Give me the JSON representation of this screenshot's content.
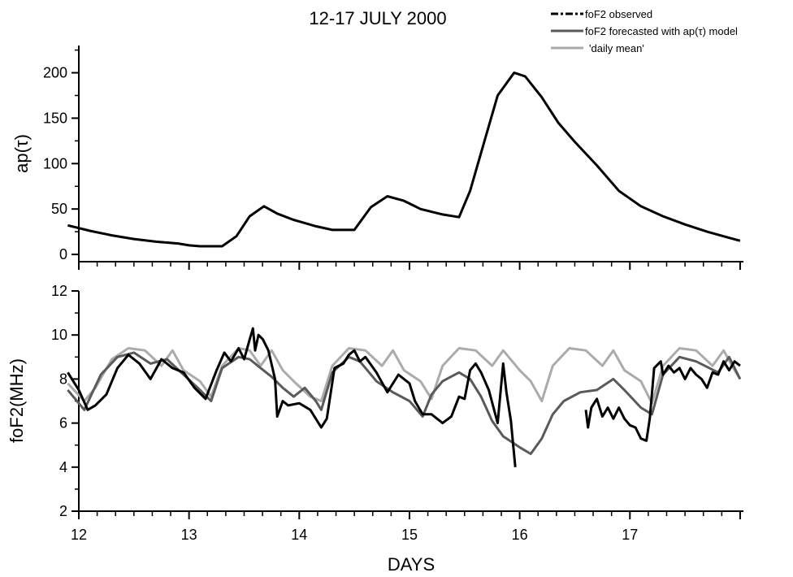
{
  "chart_data": {
    "title": "12-17 JULY 2000",
    "xlabel": "DAYS",
    "x_ticks": [
      "12",
      "13",
      "14",
      "15",
      "16",
      "17"
    ],
    "xlim": [
      12,
      18.03
    ],
    "legend": {
      "placement": "top-right",
      "entries": [
        "foF2 observed",
        "foF2 forecasted with ap(τ) model",
        "'daily mean'"
      ]
    },
    "panels": [
      {
        "type": "line",
        "ylabel": "ap(τ)",
        "ylim": [
          -8,
          230
        ],
        "y_ticks": [
          "0",
          "50",
          "100",
          "150",
          "200"
        ],
        "series": [
          {
            "color": "#000000",
            "x": [
              11.9,
              12.1,
              12.3,
              12.5,
              12.7,
              12.9,
              13.0,
              13.1,
              13.3,
              13.43,
              13.55,
              13.68,
              13.8,
              13.95,
              14.15,
              14.3,
              14.5,
              14.65,
              14.8,
              14.95,
              15.1,
              15.3,
              15.45,
              15.55,
              15.7,
              15.8,
              15.95,
              16.05,
              16.2,
              16.35,
              16.5,
              16.7,
              16.9,
              17.1,
              17.3,
              17.5,
              17.7,
              18.0
            ],
            "y": [
              32,
              26,
              21,
              17,
              14,
              12,
              10,
              9,
              9,
              20,
              42,
              53,
              45,
              38,
              31,
              27,
              27,
              52,
              64,
              59,
              50,
              44,
              41,
              70,
              133,
              175,
              200,
              196,
              173,
              145,
              124,
              98,
              70,
              53,
              42,
              33,
              25,
              15
            ]
          }
        ]
      },
      {
        "type": "line",
        "ylabel": "foF2(MHz)",
        "ylim": [
          2,
          12
        ],
        "y_ticks": [
          "2",
          "4",
          "6",
          "8",
          "10",
          "12"
        ],
        "series": [
          {
            "name": "foF2 observed",
            "color": "#000000",
            "segments": [
              {
                "x": [
                  11.9,
                  12.0,
                  12.08,
                  12.15,
                  12.25,
                  12.35,
                  12.45,
                  12.55,
                  12.65,
                  12.75,
                  12.85,
                  12.95,
                  13.05,
                  13.15,
                  13.25,
                  13.32,
                  13.38,
                  13.45,
                  13.5,
                  13.55,
                  13.58,
                  13.6,
                  13.63,
                  13.67,
                  13.72,
                  13.78,
                  13.8,
                  13.85,
                  13.9,
                  14.0,
                  14.1,
                  14.2,
                  14.25,
                  14.32,
                  14.4,
                  14.45,
                  14.5,
                  14.55,
                  14.6,
                  14.7,
                  14.8,
                  14.9,
                  15.0,
                  15.05,
                  15.12,
                  15.2,
                  15.3,
                  15.38,
                  15.45,
                  15.5,
                  15.55,
                  15.6,
                  15.65,
                  15.72,
                  15.8,
                  15.85,
                  15.88,
                  15.92,
                  15.96
                ],
                "y": [
                  8.3,
                  7.5,
                  6.6,
                  6.8,
                  7.3,
                  8.5,
                  9.1,
                  8.7,
                  8.0,
                  8.9,
                  8.5,
                  8.3,
                  7.6,
                  7.1,
                  8.4,
                  9.2,
                  8.8,
                  9.4,
                  8.9,
                  9.8,
                  10.3,
                  9.3,
                  10.0,
                  9.8,
                  9.3,
                  8.0,
                  6.3,
                  7.0,
                  6.8,
                  6.9,
                  6.6,
                  5.8,
                  6.2,
                  8.5,
                  8.7,
                  9.1,
                  9.3,
                  8.8,
                  9.0,
                  8.3,
                  7.4,
                  8.2,
                  7.8,
                  7.0,
                  6.4,
                  6.4,
                  6.0,
                  6.3,
                  7.2,
                  7.1,
                  8.4,
                  8.7,
                  8.3,
                  7.5,
                  6.0,
                  8.7,
                  7.4,
                  6.1,
                  4.0
                ]
              },
              {
                "x": [
                  16.6,
                  16.62,
                  16.65,
                  16.7,
                  16.75,
                  16.8,
                  16.85,
                  16.9,
                  16.95,
                  17.0,
                  17.05,
                  17.1,
                  17.15,
                  17.18,
                  17.22,
                  17.28,
                  17.3,
                  17.35,
                  17.4,
                  17.45,
                  17.5,
                  17.55,
                  17.6,
                  17.65,
                  17.7,
                  17.75,
                  17.8,
                  17.85,
                  17.9,
                  17.95,
                  18.0
                ],
                "y": [
                  6.6,
                  5.8,
                  6.7,
                  7.1,
                  6.3,
                  6.7,
                  6.2,
                  6.7,
                  6.2,
                  5.9,
                  5.8,
                  5.3,
                  5.2,
                  6.2,
                  8.5,
                  8.8,
                  8.2,
                  8.6,
                  8.3,
                  8.5,
                  8.0,
                  8.5,
                  8.2,
                  8.0,
                  7.6,
                  8.3,
                  8.2,
                  8.8,
                  8.4,
                  8.8,
                  8.6
                ]
              }
            ]
          },
          {
            "name": "foF2 forecasted with ap(τ) model",
            "color": "#5a5a5a",
            "segments": [
              {
                "x": [
                  11.9,
                  12.05,
                  12.2,
                  12.35,
                  12.5,
                  12.65,
                  12.8,
                  12.95,
                  13.1,
                  13.2,
                  13.3,
                  13.45,
                  13.55,
                  13.65,
                  13.75,
                  13.85,
                  13.95,
                  14.05,
                  14.15,
                  14.2,
                  14.3,
                  14.45,
                  14.55,
                  14.7,
                  14.85,
                  15.0,
                  15.12,
                  15.2,
                  15.3,
                  15.45,
                  15.55,
                  15.65,
                  15.75,
                  15.85,
                  16.0,
                  16.1,
                  16.2,
                  16.3,
                  16.4,
                  16.55,
                  16.7,
                  16.85,
                  16.95,
                  17.1,
                  17.2,
                  17.3,
                  17.45,
                  17.6,
                  17.8,
                  17.9,
                  18.0
                ],
                "y": [
                  7.5,
                  6.6,
                  8.2,
                  9.0,
                  9.2,
                  8.7,
                  8.9,
                  8.2,
                  7.5,
                  7.0,
                  8.5,
                  9.0,
                  8.9,
                  8.5,
                  8.1,
                  7.6,
                  7.2,
                  7.6,
                  7.0,
                  6.6,
                  8.3,
                  9.0,
                  8.8,
                  7.9,
                  7.4,
                  7.0,
                  6.3,
                  7.3,
                  7.9,
                  8.3,
                  8.0,
                  7.2,
                  6.1,
                  5.4,
                  4.9,
                  4.6,
                  5.3,
                  6.4,
                  7.0,
                  7.4,
                  7.5,
                  8.0,
                  7.5,
                  6.7,
                  6.4,
                  8.2,
                  9.0,
                  8.8,
                  8.3,
                  9.0,
                  8.0
                ]
              }
            ]
          },
          {
            "name": "'daily mean'",
            "color": "#ababab",
            "segments": [
              {
                "x": [
                  11.9,
                  12.05,
                  12.15,
                  12.3,
                  12.45,
                  12.6,
                  12.75,
                  12.85,
                  12.95,
                  13.1,
                  13.2,
                  13.3,
                  13.45,
                  13.55,
                  13.65,
                  13.75,
                  13.85,
                  13.95,
                  14.1,
                  14.2,
                  14.3,
                  14.45,
                  14.6,
                  14.75,
                  14.85,
                  14.95,
                  15.1,
                  15.2,
                  15.3,
                  15.45,
                  15.6,
                  15.75,
                  15.85,
                  16.0,
                  16.1,
                  16.2,
                  16.3,
                  16.45,
                  16.6,
                  16.75,
                  16.85,
                  16.95,
                  17.1,
                  17.2,
                  17.3,
                  17.45,
                  17.6,
                  17.75,
                  17.85,
                  17.95,
                  18.0
                ],
                "y": [
                  7.8,
                  7.0,
                  7.6,
                  8.9,
                  9.4,
                  9.3,
                  8.6,
                  9.3,
                  8.4,
                  7.9,
                  7.2,
                  8.6,
                  9.4,
                  9.3,
                  8.6,
                  9.3,
                  8.4,
                  7.9,
                  7.2,
                  7.0,
                  8.6,
                  9.4,
                  9.3,
                  8.6,
                  9.3,
                  8.4,
                  7.9,
                  7.1,
                  8.6,
                  9.4,
                  9.3,
                  8.6,
                  9.3,
                  8.4,
                  7.9,
                  7.0,
                  8.6,
                  9.4,
                  9.3,
                  8.6,
                  9.3,
                  8.4,
                  7.9,
                  6.9,
                  8.6,
                  9.4,
                  9.3,
                  8.6,
                  9.3,
                  8.4,
                  8.0
                ]
              }
            ]
          }
        ]
      }
    ]
  }
}
